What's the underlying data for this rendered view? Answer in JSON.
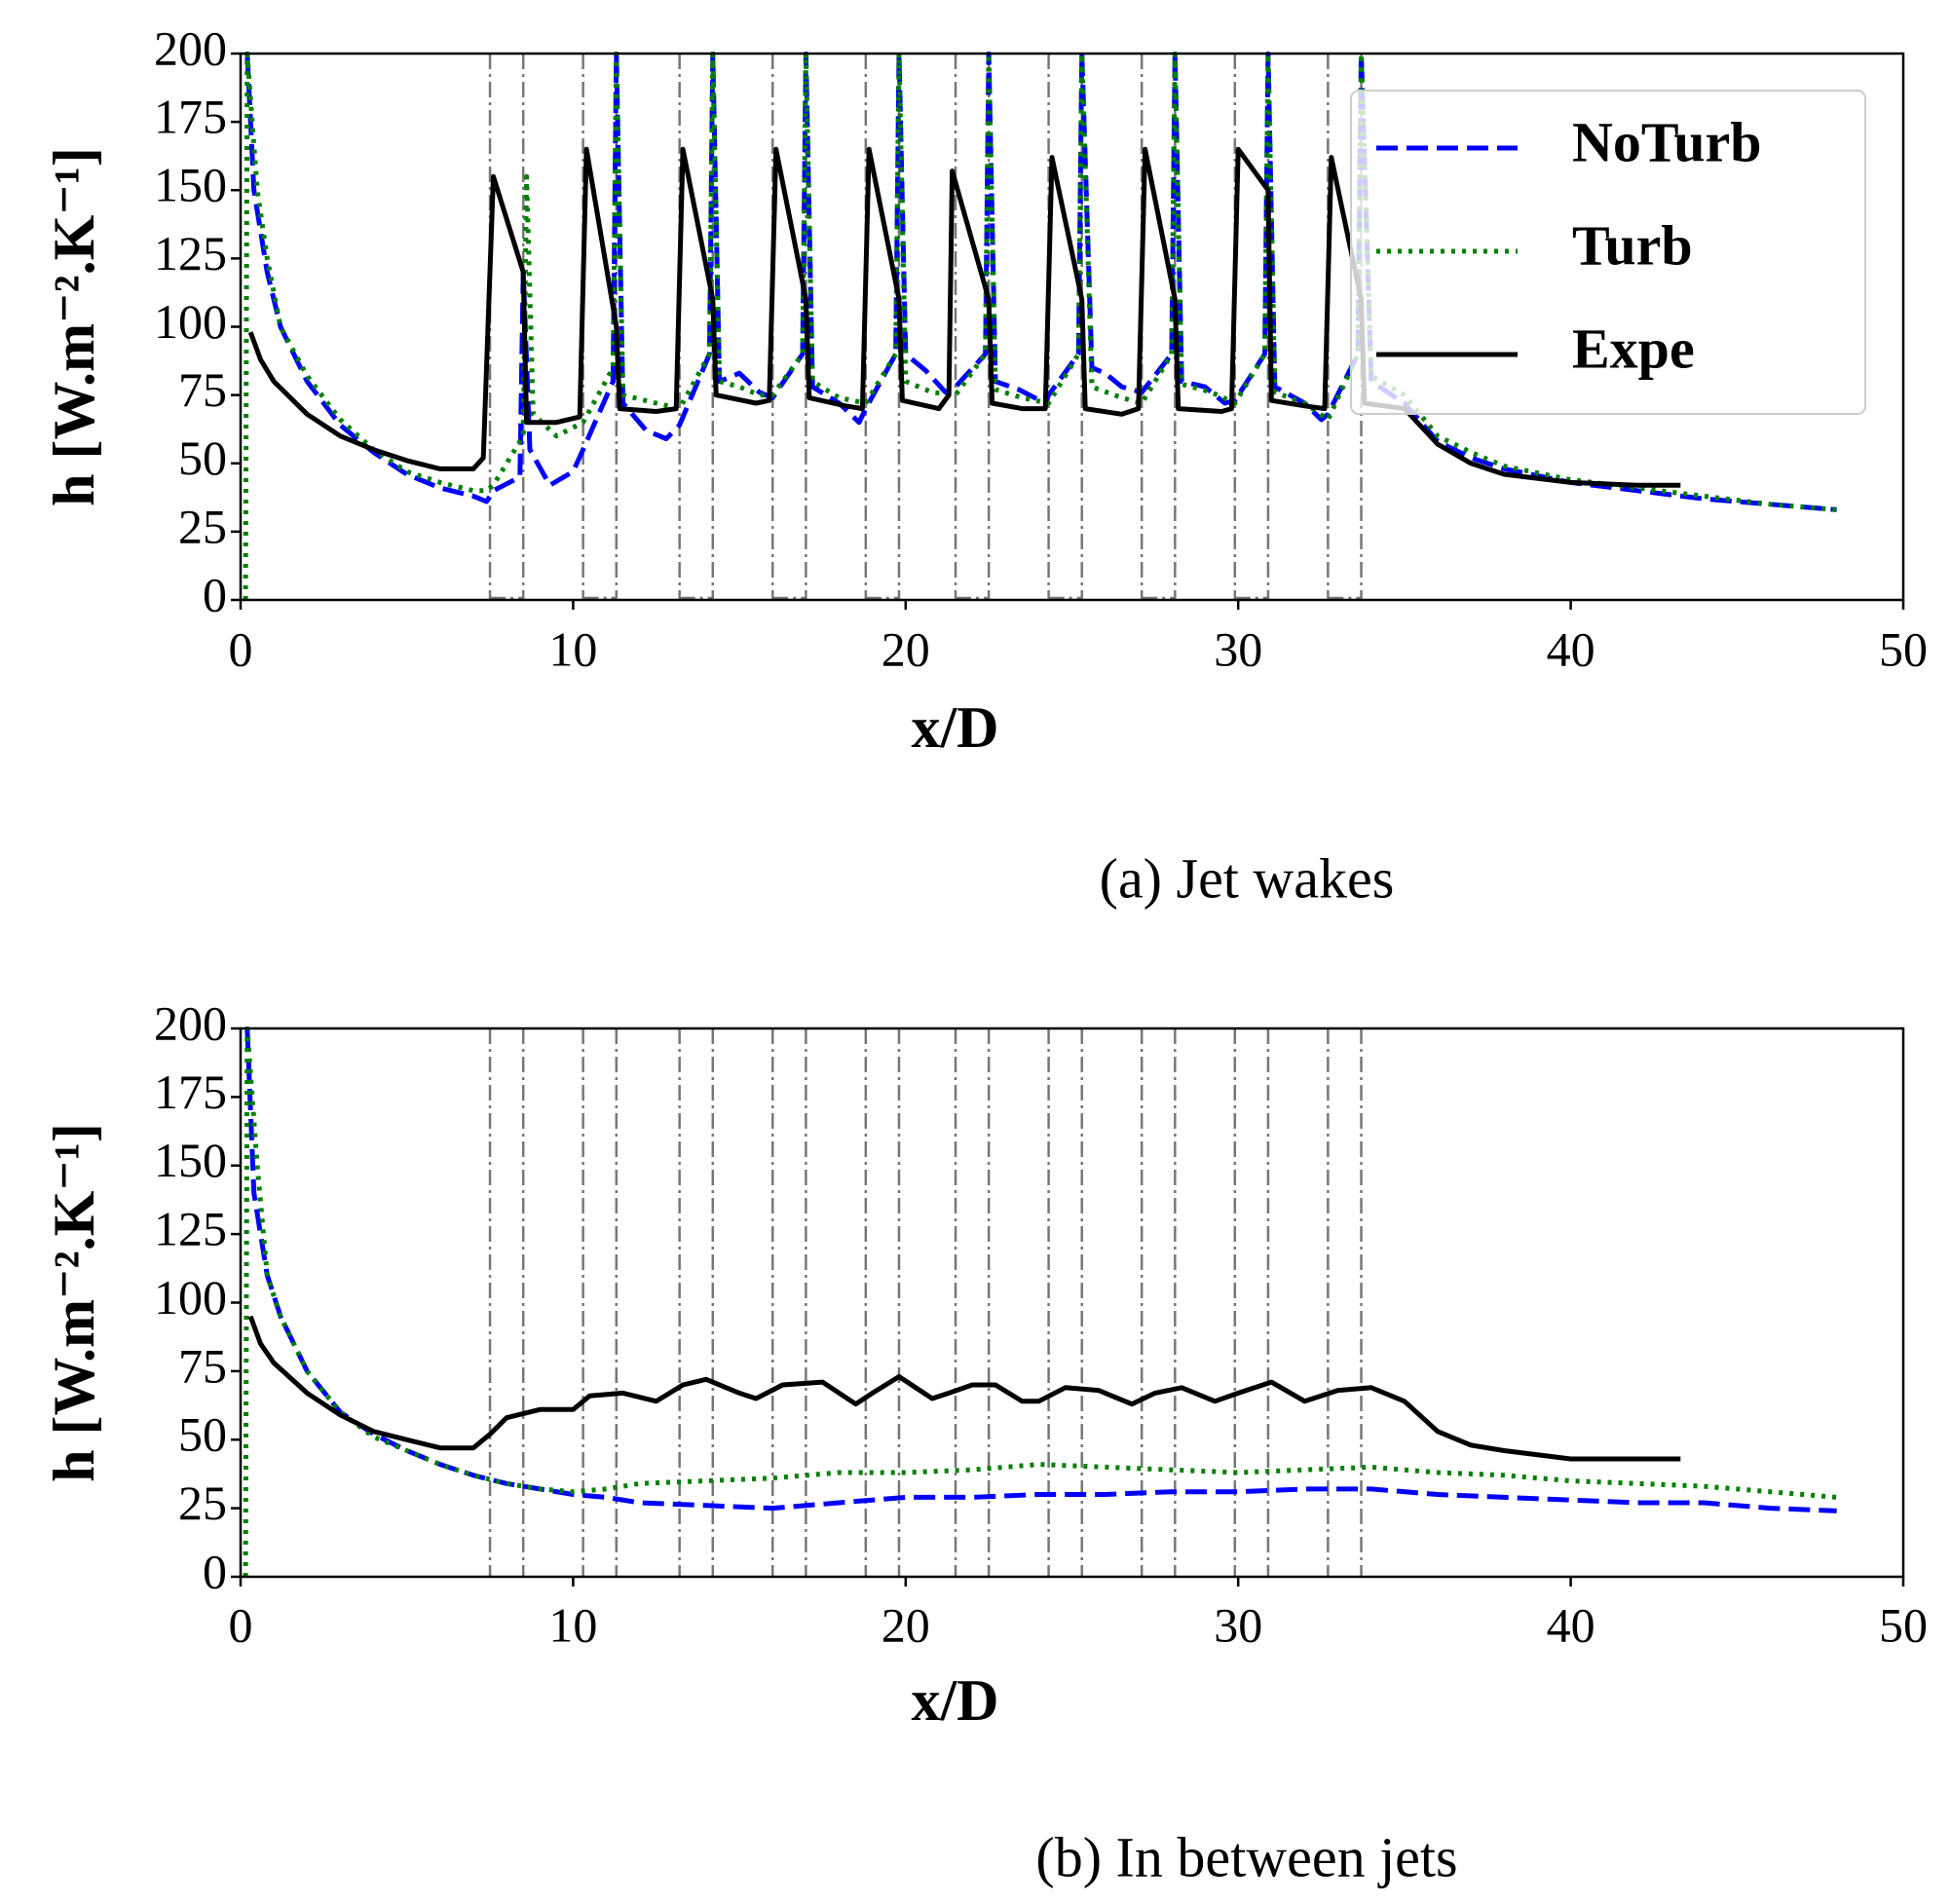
{
  "chart_data": [
    {
      "type": "line",
      "xlabel": "x/D",
      "ylabel": "h [W.m⁻².K⁻¹]",
      "caption": "(a) Jet wakes",
      "xlim": [
        0,
        50
      ],
      "ylim": [
        0,
        200
      ],
      "xticks": [
        0,
        10,
        20,
        30,
        40,
        50
      ],
      "yticks": [
        0,
        25,
        50,
        75,
        100,
        125,
        150,
        175,
        200
      ],
      "legend": "upper right",
      "vline_boxes": true,
      "vlines": [
        7.5,
        8.5,
        10.3,
        11.3,
        13.2,
        14.2,
        16.0,
        17.0,
        18.8,
        19.8,
        21.5,
        22.5,
        24.3,
        25.3,
        27.1,
        28.1,
        29.9,
        30.9,
        32.7,
        33.7
      ],
      "series": [
        {
          "name": "NoTurb",
          "color": "#0000ff",
          "style": "dashed",
          "x": [
            0.2,
            0.4,
            0.8,
            1.2,
            2,
            3,
            4,
            5,
            6,
            7,
            7.4,
            7.6,
            8.4,
            8.5,
            8.7,
            9.3,
            10,
            10.3,
            11.2,
            11.3,
            11.5,
            12.2,
            12.8,
            13.2,
            14.1,
            14.2,
            14.4,
            15,
            15.6,
            16,
            16.9,
            17,
            17.2,
            18,
            18.6,
            18.8,
            19.7,
            19.8,
            20,
            20.6,
            21.2,
            21.5,
            22.4,
            22.5,
            22.7,
            23.4,
            24.2,
            24.3,
            25.2,
            25.3,
            25.6,
            26,
            26.5,
            27.1,
            28,
            28.1,
            28.3,
            29,
            29.6,
            29.9,
            30.8,
            30.9,
            31.1,
            32,
            32.5,
            32.7,
            33.6,
            33.7,
            34,
            35,
            36,
            37,
            38,
            40,
            42,
            44,
            46,
            48
          ],
          "values": [
            200,
            150,
            120,
            100,
            80,
            64,
            54,
            46,
            41,
            38,
            36,
            40,
            45,
            120,
            55,
            42,
            47,
            55,
            80,
            200,
            72,
            62,
            59,
            64,
            90,
            200,
            80,
            83,
            76,
            74,
            90,
            200,
            78,
            72,
            65,
            70,
            90,
            200,
            90,
            84,
            76,
            78,
            90,
            200,
            80,
            77,
            72,
            75,
            90,
            200,
            85,
            83,
            78,
            76,
            90,
            200,
            80,
            78,
            72,
            73,
            90,
            200,
            78,
            72,
            66,
            68,
            90,
            200,
            80,
            72,
            58,
            52,
            48,
            43,
            40,
            37,
            35,
            33
          ]
        },
        {
          "name": "Turb",
          "color": "#008000",
          "style": "dotted",
          "x": [
            0.15,
            0.2,
            0.5,
            0.8,
            1.2,
            2,
            3,
            4,
            5,
            6,
            7,
            7.4,
            7.6,
            8.5,
            8.6,
            8.8,
            9.5,
            10.3,
            11.2,
            11.3,
            11.5,
            12.5,
            13.2,
            14.1,
            14.2,
            14.4,
            15,
            15.6,
            16,
            16.9,
            17,
            17.2,
            18,
            18.8,
            19.7,
            19.8,
            20,
            20.8,
            21.5,
            22.4,
            22.5,
            22.7,
            23.5,
            24.3,
            25.2,
            25.3,
            25.6,
            26.5,
            27.1,
            28,
            28.1,
            28.3,
            29.2,
            29.9,
            30.8,
            30.9,
            31.1,
            32,
            32.7,
            33.6,
            33.7,
            34,
            35,
            36,
            37,
            38,
            40,
            42,
            44,
            46,
            48
          ],
          "values": [
            0,
            200,
            150,
            125,
            100,
            82,
            66,
            55,
            47,
            43,
            40,
            40,
            42,
            60,
            155,
            68,
            60,
            65,
            85,
            200,
            75,
            72,
            70,
            90,
            200,
            80,
            78,
            75,
            75,
            90,
            200,
            80,
            74,
            72,
            90,
            200,
            80,
            76,
            75,
            90,
            200,
            77,
            74,
            72,
            90,
            200,
            78,
            74,
            72,
            90,
            200,
            79,
            76,
            72,
            90,
            200,
            76,
            72,
            66,
            90,
            200,
            82,
            75,
            60,
            54,
            49,
            44,
            41,
            38,
            35,
            33
          ]
        },
        {
          "name": "Expe",
          "color": "#000000",
          "style": "solid",
          "x": [
            0.3,
            0.6,
            1,
            2,
            3,
            4,
            5,
            6,
            7,
            7.3,
            7.6,
            8.5,
            8.6,
            9.5,
            10.2,
            10.4,
            11.3,
            11.4,
            12.5,
            13.1,
            13.3,
            14.2,
            14.3,
            15.5,
            15.9,
            16.1,
            17,
            17.1,
            18.2,
            18.7,
            18.9,
            19.8,
            19.9,
            21,
            21.3,
            21.4,
            22.5,
            22.6,
            23.5,
            24.2,
            24.4,
            25.3,
            25.4,
            26.5,
            27,
            27.2,
            28.1,
            28.2,
            29.5,
            29.8,
            30,
            30.9,
            31,
            32,
            32.6,
            32.8,
            33.7,
            33.8,
            35,
            36,
            37,
            38,
            40,
            42,
            43.3
          ],
          "values": [
            98,
            88,
            80,
            68,
            60,
            55,
            51,
            48,
            48,
            52,
            155,
            120,
            65,
            65,
            67,
            165,
            100,
            70,
            69,
            70,
            165,
            110,
            75,
            72,
            73,
            165,
            110,
            74,
            71,
            70,
            165,
            110,
            73,
            70,
            75,
            157,
            110,
            72,
            70,
            70,
            162,
            110,
            70,
            68,
            70,
            165,
            110,
            70,
            69,
            70,
            165,
            150,
            73,
            71,
            70,
            162,
            110,
            72,
            70,
            57,
            50,
            46,
            43,
            42,
            42
          ]
        }
      ]
    },
    {
      "type": "line",
      "xlabel": "x/D",
      "ylabel": "h [W.m⁻².K⁻¹]",
      "caption": "(b) In between jets",
      "xlim": [
        0,
        50
      ],
      "ylim": [
        0,
        200
      ],
      "xticks": [
        0,
        10,
        20,
        30,
        40,
        50
      ],
      "yticks": [
        0,
        25,
        50,
        75,
        100,
        125,
        150,
        175,
        200
      ],
      "vline_boxes": false,
      "vlines": [
        7.5,
        8.5,
        10.3,
        11.3,
        13.2,
        14.2,
        16.0,
        17.0,
        18.8,
        19.8,
        21.5,
        22.5,
        24.3,
        25.3,
        27.1,
        28.1,
        29.9,
        30.9,
        32.7,
        33.7
      ],
      "series": [
        {
          "name": "NoTurb",
          "color": "#0000ff",
          "style": "dashed",
          "x": [
            0.2,
            0.4,
            0.8,
            1.2,
            2,
            3,
            4,
            5,
            6,
            7,
            8,
            9,
            10,
            11,
            12,
            14,
            16,
            18,
            20,
            22,
            24,
            26,
            28,
            30,
            32,
            34,
            36,
            38,
            40,
            42,
            44,
            46,
            48
          ],
          "values": [
            200,
            140,
            110,
            95,
            75,
            60,
            52,
            46,
            41,
            37,
            34,
            32,
            30,
            29,
            27,
            26,
            25,
            27,
            29,
            29,
            30,
            30,
            31,
            31,
            32,
            32,
            30,
            29,
            28,
            27,
            27,
            25,
            24
          ]
        },
        {
          "name": "Turb",
          "color": "#008000",
          "style": "dotted",
          "x": [
            0.15,
            0.2,
            0.5,
            0.8,
            1.2,
            2,
            3,
            4,
            5,
            6,
            7,
            8,
            9,
            10,
            11,
            12,
            14,
            16,
            18,
            20,
            22,
            24,
            26,
            28,
            30,
            32,
            34,
            36,
            38,
            40,
            42,
            44,
            46,
            48
          ],
          "values": [
            0,
            200,
            150,
            110,
            95,
            75,
            60,
            51,
            46,
            41,
            37,
            34,
            32,
            31,
            32,
            34,
            35,
            36,
            38,
            38,
            39,
            41,
            40,
            39,
            38,
            39,
            40,
            38,
            37,
            35,
            34,
            33,
            31,
            29
          ]
        },
        {
          "name": "Expe",
          "color": "#000000",
          "style": "solid",
          "x": [
            0.3,
            0.6,
            1,
            2,
            3,
            4,
            5,
            6,
            7,
            7.5,
            8,
            9,
            10,
            10.5,
            11.5,
            12.5,
            13.3,
            14,
            15,
            15.5,
            16.3,
            17.5,
            18.5,
            19,
            19.8,
            20.8,
            21.3,
            22,
            22.7,
            23.5,
            24,
            24.8,
            25.8,
            26.8,
            27.5,
            28.3,
            29.3,
            30,
            31,
            32,
            33,
            34,
            35,
            36,
            37,
            38,
            40,
            42,
            43.3
          ],
          "values": [
            95,
            85,
            78,
            67,
            59,
            53,
            50,
            47,
            47,
            52,
            58,
            61,
            61,
            66,
            67,
            64,
            70,
            72,
            67,
            65,
            70,
            71,
            63,
            67,
            73,
            65,
            67,
            70,
            70,
            64,
            64,
            69,
            68,
            63,
            67,
            69,
            64,
            67,
            71,
            64,
            68,
            69,
            64,
            53,
            48,
            46,
            43,
            43,
            43
          ]
        }
      ]
    }
  ]
}
